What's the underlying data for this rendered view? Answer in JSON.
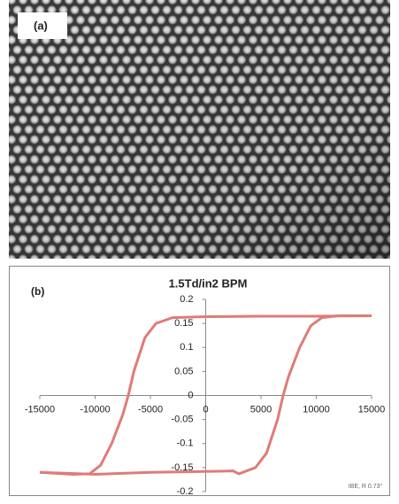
{
  "panel_a": {
    "label": "(a)"
  },
  "chart_data": {
    "type": "line",
    "title": "1.5Td/in2 BPM",
    "panel_label": "(b)",
    "annotation": "IBE, R 0.73\"",
    "xlim": [
      -15000,
      15000
    ],
    "xticks": [
      -15000,
      -10000,
      -5000,
      0,
      5000,
      10000,
      15000
    ],
    "ylim": [
      -0.2,
      0.2
    ],
    "yticks": [
      0.2,
      0.15,
      0.1,
      0.05,
      0,
      -0.05,
      -0.1,
      -0.15,
      -0.2
    ],
    "series": [
      {
        "color": "#e07b78",
        "x": [
          15000,
          10000,
          5000,
          0,
          -3000,
          -4500,
          -5500,
          -6500,
          -7000,
          -7500,
          -8500,
          -9500,
          -10500,
          -12000,
          -15000
        ],
        "values": [
          0.166,
          0.165,
          0.165,
          0.164,
          0.162,
          0.15,
          0.12,
          0.05,
          0,
          -0.04,
          -0.1,
          -0.145,
          -0.163,
          -0.164,
          -0.16
        ]
      },
      {
        "color": "#e07b78",
        "x": [
          -15000,
          -10000,
          -5000,
          0,
          2500,
          3000,
          4500,
          5500,
          6500,
          7000,
          7500,
          8500,
          9500,
          10500,
          12000,
          15000
        ],
        "values": [
          -0.16,
          -0.164,
          -0.16,
          -0.158,
          -0.157,
          -0.163,
          -0.15,
          -0.12,
          -0.05,
          0,
          0.04,
          0.1,
          0.145,
          0.162,
          0.166,
          0.166
        ]
      }
    ]
  }
}
